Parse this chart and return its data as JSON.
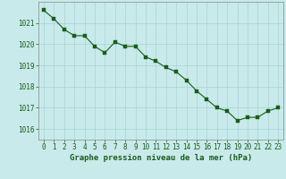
{
  "x": [
    0,
    1,
    2,
    3,
    4,
    5,
    6,
    7,
    8,
    9,
    10,
    11,
    12,
    13,
    14,
    15,
    16,
    17,
    18,
    19,
    20,
    21,
    22,
    23
  ],
  "y": [
    1021.6,
    1021.2,
    1020.7,
    1020.4,
    1020.4,
    1019.9,
    1019.6,
    1020.1,
    1019.9,
    1019.9,
    1019.4,
    1019.2,
    1018.9,
    1018.7,
    1018.3,
    1017.8,
    1017.4,
    1017.0,
    1016.85,
    1016.4,
    1016.55,
    1016.55,
    1016.85,
    1017.0
  ],
  "line_color": "#1a5c1a",
  "marker_color": "#1a5c1a",
  "background_color": "#c8eaea",
  "grid_color": "#a8d4d4",
  "xlabel": "Graphe pression niveau de la mer (hPa)",
  "ylim": [
    1015.5,
    1022.0
  ],
  "xlim": [
    -0.5,
    23.5
  ],
  "yticks": [
    1016,
    1017,
    1018,
    1019,
    1020,
    1021
  ],
  "xticks": [
    0,
    1,
    2,
    3,
    4,
    5,
    6,
    7,
    8,
    9,
    10,
    11,
    12,
    13,
    14,
    15,
    16,
    17,
    18,
    19,
    20,
    21,
    22,
    23
  ],
  "xlabel_color": "#1a5c1a",
  "xlabel_fontsize": 6.5,
  "tick_fontsize": 5.5,
  "tick_color": "#1a5c1a",
  "line_width": 0.8,
  "marker_size": 2.5
}
